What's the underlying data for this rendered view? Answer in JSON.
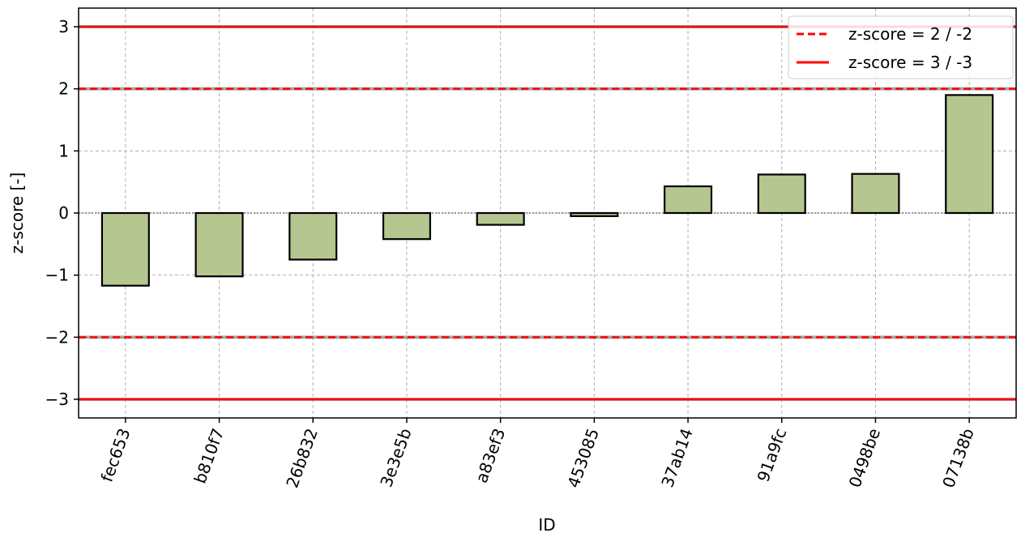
{
  "chart_data": {
    "type": "bar",
    "xlabel": "ID",
    "ylabel": "z-score [-]",
    "categories": [
      "fec653",
      "b810f7",
      "26b832",
      "3e3e5b",
      "a83ef3",
      "453085",
      "37ab14",
      "91a9fc",
      "0498be",
      "07138b"
    ],
    "values": [
      -1.17,
      -1.02,
      -0.75,
      -0.42,
      -0.19,
      -0.05,
      0.43,
      0.62,
      0.63,
      1.9
    ],
    "color": "#b5c690",
    "edgecolor": "#000000",
    "ylim": [
      -3.3,
      3.3
    ],
    "yticks": [
      {
        "value": -3,
        "label": "−3"
      },
      {
        "value": -2,
        "label": "−2"
      },
      {
        "value": -1,
        "label": "−1"
      },
      0,
      1,
      2,
      3
    ],
    "grid": true,
    "legend": "upper right",
    "hlines": [
      {
        "name": "z-score = 2 / -2",
        "values": [
          2,
          -2
        ],
        "style": "dashed",
        "color": "#ff0000"
      },
      {
        "name": "z-score = 3 / -3",
        "values": [
          3,
          -3
        ],
        "style": "solid",
        "color": "#ff0000"
      }
    ]
  }
}
